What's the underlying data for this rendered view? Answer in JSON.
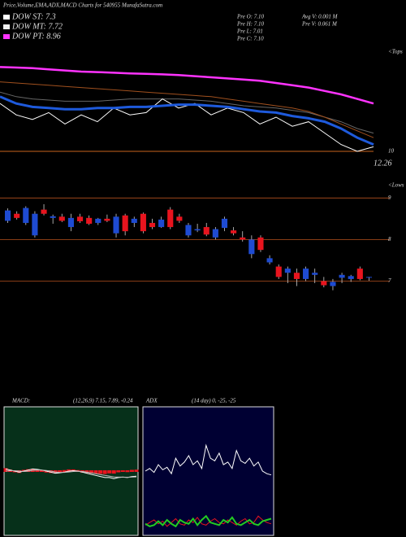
{
  "title": "Price,Volume,EMA,ADX,MACD Charts for 540955 MunafaSutra.com",
  "legend": [
    {
      "label": "DOW ST: 7.3",
      "color": "#ffffff"
    },
    {
      "label": "DOW MT: 7.72",
      "color": "#f0f0f0"
    },
    {
      "label": "DOW PT: 8.96",
      "color": "#ff33ff"
    }
  ],
  "info": [
    "Pre O: 7.10",
    "Pre H: 7.10",
    "Pre L: 7.01",
    "Pre C: 7.10",
    "Avg V: 0.001 M",
    "Pre V: 0.061 M"
  ],
  "chart_data": [
    {
      "type": "line",
      "annotation": "<Tops",
      "note": "12.26",
      "ylim": [
        9.5,
        14.5
      ],
      "yticks": [
        10
      ],
      "grid": true,
      "grid_color": "#c8641e",
      "series": [
        {
          "color": "#666666",
          "values": [
            12.6,
            12.4,
            12.3,
            12.25,
            12.2,
            12.2,
            12.2,
            12.25,
            12.3,
            12.3,
            12.3,
            12.3,
            12.25,
            12.2,
            12.1,
            12.0,
            11.95,
            11.9,
            11.8,
            11.7,
            11.5,
            11.3,
            11.0,
            10.8
          ]
        },
        {
          "color": "#a0501e",
          "values": [
            13.05,
            13.0,
            12.95,
            12.9,
            12.85,
            12.8,
            12.75,
            12.7,
            12.65,
            12.6,
            12.55,
            12.5,
            12.45,
            12.4,
            12.3,
            12.2,
            12.1,
            12.0,
            11.9,
            11.75,
            11.5,
            11.2,
            10.9,
            10.6
          ]
        },
        {
          "color": "#ff33ff",
          "values": [
            13.7,
            13.68,
            13.65,
            13.6,
            13.55,
            13.5,
            13.48,
            13.45,
            13.42,
            13.4,
            13.38,
            13.35,
            13.3,
            13.25,
            13.2,
            13.15,
            13.1,
            13.0,
            12.9,
            12.8,
            12.65,
            12.5,
            12.3,
            12.1
          ]
        },
        {
          "color": "#ffffff",
          "values": [
            12.1,
            11.6,
            11.4,
            11.7,
            11.2,
            11.6,
            11.3,
            11.9,
            11.6,
            11.7,
            12.3,
            11.9,
            12.1,
            11.6,
            11.9,
            11.7,
            11.2,
            11.5,
            11.1,
            11.3,
            10.8,
            10.3,
            10.0,
            10.2
          ]
        },
        {
          "color": "#1e5adc",
          "values": [
            12.4,
            12.1,
            11.95,
            11.9,
            11.85,
            11.85,
            11.9,
            11.9,
            11.95,
            11.95,
            12.0,
            12.05,
            12.05,
            12.0,
            11.95,
            11.85,
            11.75,
            11.7,
            11.55,
            11.45,
            11.3,
            11.0,
            10.6,
            10.3
          ]
        }
      ]
    },
    {
      "type": "candlestick",
      "annotation": "<Lows",
      "ylim": [
        6.5,
        9.3
      ],
      "yticks": [
        7,
        8,
        9
      ],
      "grid": true,
      "grid_color": "#b4501e",
      "up_color": "#1e4bd2",
      "down_color": "#e8141e",
      "open": [
        8.45,
        8.62,
        8.4,
        8.1,
        8.72,
        8.52,
        8.55,
        8.3,
        8.55,
        8.52,
        8.4,
        8.5,
        8.15,
        8.58,
        8.4,
        8.62,
        8.4,
        8.3,
        8.72,
        8.55,
        8.1,
        8.22,
        8.3,
        8.05,
        8.28,
        8.22,
        8.05,
        7.65,
        8.05,
        7.45,
        7.35,
        7.2,
        7.2,
        7.05,
        7.15,
        7.0,
        6.88,
        7.08,
        7.05,
        7.3,
        7.1
      ],
      "high": [
        8.75,
        8.68,
        8.8,
        8.68,
        8.85,
        8.6,
        8.62,
        8.62,
        8.62,
        8.58,
        8.52,
        8.6,
        8.62,
        8.62,
        8.55,
        8.65,
        8.5,
        8.55,
        8.78,
        8.62,
        8.4,
        8.38,
        8.4,
        8.3,
        8.55,
        8.3,
        8.2,
        8.1,
        8.1,
        7.62,
        7.4,
        7.35,
        7.3,
        7.35,
        7.3,
        7.1,
        7.05,
        7.2,
        7.15,
        7.35,
        7.1
      ],
      "low": [
        8.4,
        8.48,
        8.35,
        8.05,
        8.58,
        8.38,
        8.42,
        8.2,
        8.4,
        8.35,
        8.35,
        8.42,
        8.05,
        8.1,
        8.3,
        8.15,
        8.25,
        8.28,
        8.25,
        8.4,
        8.05,
        8.18,
        8.08,
        8.0,
        8.2,
        8.1,
        7.95,
        7.55,
        7.7,
        7.4,
        7.05,
        6.95,
        6.88,
        7.0,
        6.95,
        6.85,
        6.78,
        6.95,
        6.98,
        7.02,
        7.01
      ],
      "close": [
        8.7,
        8.52,
        8.76,
        8.62,
        8.62,
        8.56,
        8.45,
        8.52,
        8.44,
        8.38,
        8.5,
        8.45,
        8.55,
        8.2,
        8.5,
        8.2,
        8.3,
        8.48,
        8.3,
        8.45,
        8.35,
        8.25,
        8.12,
        8.25,
        8.5,
        8.15,
        8.0,
        8.0,
        7.75,
        7.55,
        7.1,
        7.3,
        7.05,
        7.3,
        7.2,
        6.9,
        6.98,
        7.15,
        7.12,
        7.05,
        7.1
      ]
    },
    {
      "type": "macd",
      "title": "MACD:",
      "subtitle": "(12,26,9) 7.15, 7.89, -0.24",
      "ylim": [
        -3,
        3
      ],
      "background": "#06301a",
      "series": [
        {
          "color": "#ffffff",
          "values": [
            0.1,
            0.05,
            0.0,
            -0.05,
            0.0,
            0.05,
            0.1,
            0.08,
            0.05,
            0.0,
            -0.05,
            -0.1,
            -0.08,
            -0.05,
            0.0,
            0.02,
            0.0,
            -0.05,
            -0.1,
            -0.15,
            -0.2,
            -0.25,
            -0.3,
            -0.3,
            -0.35,
            -0.3,
            -0.28,
            -0.3,
            -0.26,
            -0.24
          ]
        },
        {
          "color": "#bbbbbb",
          "values": [
            0.0,
            0.02,
            0.02,
            0.0,
            -0.02,
            0.0,
            0.03,
            0.05,
            0.05,
            0.03,
            0.0,
            -0.04,
            -0.06,
            -0.06,
            -0.04,
            -0.02,
            -0.01,
            -0.02,
            -0.05,
            -0.08,
            -0.12,
            -0.16,
            -0.2,
            -0.23,
            -0.27,
            -0.28,
            -0.28,
            -0.29,
            -0.28,
            -0.27
          ]
        }
      ],
      "histogram": {
        "color": "#e8141e",
        "values": [
          0.1,
          0.03,
          -0.02,
          -0.05,
          0.02,
          0.05,
          0.07,
          0.03,
          0.0,
          -0.03,
          -0.05,
          -0.06,
          -0.02,
          0.01,
          0.04,
          0.04,
          0.01,
          -0.03,
          -0.05,
          -0.07,
          -0.08,
          -0.09,
          -0.1,
          -0.07,
          -0.08,
          -0.02,
          0.0,
          -0.01,
          0.02,
          0.03
        ]
      }
    },
    {
      "type": "adx",
      "title": "ADX",
      "subtitle": "(14 day) 0, -25, -25",
      "ylim": [
        0,
        100
      ],
      "background": "#000033",
      "series": [
        {
          "color": "#ffffff",
          "values": [
            50,
            52,
            49,
            55,
            51,
            53,
            48,
            60,
            54,
            57,
            62,
            55,
            58,
            52,
            70,
            60,
            58,
            64,
            55,
            57,
            52,
            66,
            58,
            56,
            60,
            54,
            57,
            50,
            48,
            47
          ]
        },
        {
          "color": "#e8141e",
          "values": [
            8,
            10,
            12,
            9,
            11,
            7,
            10,
            13,
            9,
            8,
            12,
            10,
            14,
            9,
            8,
            11,
            13,
            10,
            9,
            12,
            10,
            8,
            11,
            13,
            9,
            10,
            15,
            12,
            10,
            9
          ]
        },
        {
          "color": "#22cc22",
          "values": [
            9,
            7,
            8,
            11,
            8,
            12,
            9,
            7,
            12,
            10,
            9,
            13,
            8,
            12,
            15,
            10,
            9,
            8,
            12,
            10,
            14,
            9,
            8,
            10,
            12,
            9,
            8,
            11,
            12,
            13
          ]
        }
      ]
    }
  ]
}
